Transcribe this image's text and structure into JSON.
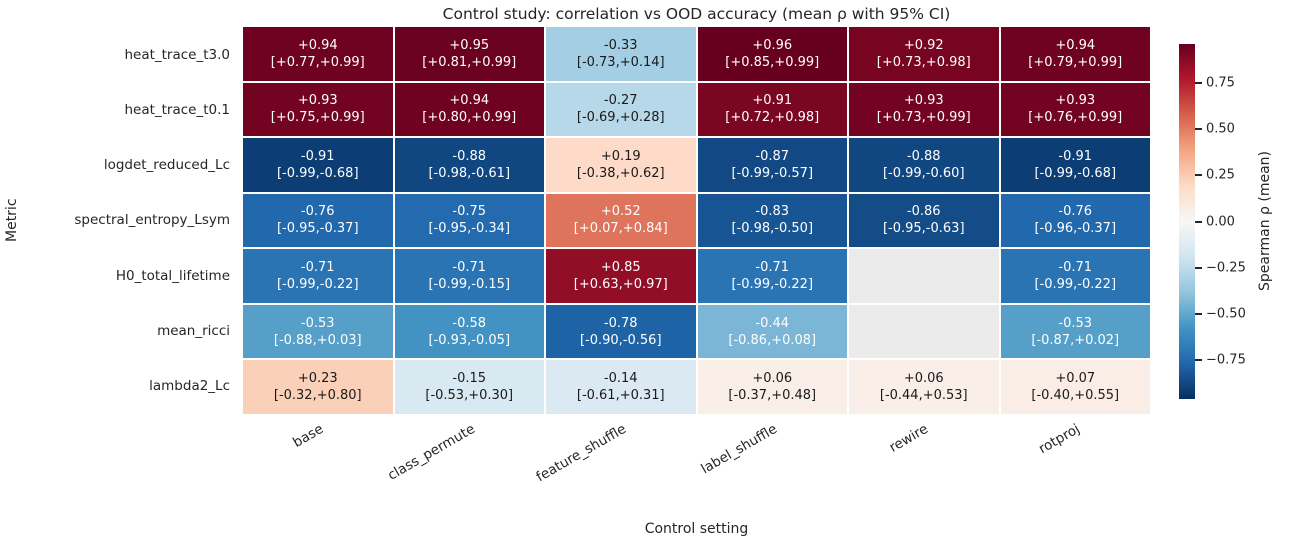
{
  "chart_data": {
    "type": "heatmap",
    "title": "Control study: correlation vs OOD accuracy (mean ρ with 95% CI)",
    "xlabel": "Control setting",
    "ylabel": "Metric",
    "colorbar_label": "Spearman ρ (mean)",
    "colormap": "RdBu_r",
    "vmin": -0.96,
    "vmax": 0.96,
    "missing_color": "#ebebeb",
    "columns": [
      "base",
      "class_permute",
      "feature_shuffle",
      "label_shuffle",
      "rewire",
      "rotproj"
    ],
    "rows": [
      "heat_trace_t3.0",
      "heat_trace_t0.1",
      "logdet_reduced_Lc",
      "spectral_entropy_Lsym",
      "H0_total_lifetime",
      "mean_ricci",
      "lambda2_Lc"
    ],
    "cells": [
      [
        {
          "mean": "+0.94",
          "ci": "[+0.77,+0.99]",
          "value": 0.94
        },
        {
          "mean": "+0.95",
          "ci": "[+0.81,+0.99]",
          "value": 0.95
        },
        {
          "mean": "-0.33",
          "ci": "[-0.73,+0.14]",
          "value": -0.33
        },
        {
          "mean": "+0.96",
          "ci": "[+0.85,+0.99]",
          "value": 0.96
        },
        {
          "mean": "+0.92",
          "ci": "[+0.73,+0.98]",
          "value": 0.92
        },
        {
          "mean": "+0.94",
          "ci": "[+0.79,+0.99]",
          "value": 0.94
        }
      ],
      [
        {
          "mean": "+0.93",
          "ci": "[+0.75,+0.99]",
          "value": 0.93
        },
        {
          "mean": "+0.94",
          "ci": "[+0.80,+0.99]",
          "value": 0.94
        },
        {
          "mean": "-0.27",
          "ci": "[-0.69,+0.28]",
          "value": -0.27
        },
        {
          "mean": "+0.91",
          "ci": "[+0.72,+0.98]",
          "value": 0.91
        },
        {
          "mean": "+0.93",
          "ci": "[+0.73,+0.99]",
          "value": 0.93
        },
        {
          "mean": "+0.93",
          "ci": "[+0.76,+0.99]",
          "value": 0.93
        }
      ],
      [
        {
          "mean": "-0.91",
          "ci": "[-0.99,-0.68]",
          "value": -0.91
        },
        {
          "mean": "-0.88",
          "ci": "[-0.98,-0.61]",
          "value": -0.88
        },
        {
          "mean": "+0.19",
          "ci": "[-0.38,+0.62]",
          "value": 0.19
        },
        {
          "mean": "-0.87",
          "ci": "[-0.99,-0.57]",
          "value": -0.87
        },
        {
          "mean": "-0.88",
          "ci": "[-0.99,-0.60]",
          "value": -0.88
        },
        {
          "mean": "-0.91",
          "ci": "[-0.99,-0.68]",
          "value": -0.91
        }
      ],
      [
        {
          "mean": "-0.76",
          "ci": "[-0.95,-0.37]",
          "value": -0.76
        },
        {
          "mean": "-0.75",
          "ci": "[-0.95,-0.34]",
          "value": -0.75
        },
        {
          "mean": "+0.52",
          "ci": "[+0.07,+0.84]",
          "value": 0.52
        },
        {
          "mean": "-0.83",
          "ci": "[-0.98,-0.50]",
          "value": -0.83
        },
        {
          "mean": "-0.86",
          "ci": "[-0.95,-0.63]",
          "value": -0.86
        },
        {
          "mean": "-0.76",
          "ci": "[-0.96,-0.37]",
          "value": -0.76
        }
      ],
      [
        {
          "mean": "-0.71",
          "ci": "[-0.99,-0.22]",
          "value": -0.71
        },
        {
          "mean": "-0.71",
          "ci": "[-0.99,-0.15]",
          "value": -0.71
        },
        {
          "mean": "+0.85",
          "ci": "[+0.63,+0.97]",
          "value": 0.85
        },
        {
          "mean": "-0.71",
          "ci": "[-0.99,-0.22]",
          "value": -0.71
        },
        null,
        {
          "mean": "-0.71",
          "ci": "[-0.99,-0.22]",
          "value": -0.71
        }
      ],
      [
        {
          "mean": "-0.53",
          "ci": "[-0.88,+0.03]",
          "value": -0.53
        },
        {
          "mean": "-0.58",
          "ci": "[-0.93,-0.05]",
          "value": -0.58
        },
        {
          "mean": "-0.78",
          "ci": "[-0.90,-0.56]",
          "value": -0.78
        },
        {
          "mean": "-0.44",
          "ci": "[-0.86,+0.08]",
          "value": -0.44
        },
        null,
        {
          "mean": "-0.53",
          "ci": "[-0.87,+0.02]",
          "value": -0.53
        }
      ],
      [
        {
          "mean": "+0.23",
          "ci": "[-0.32,+0.80]",
          "value": 0.23
        },
        {
          "mean": "-0.15",
          "ci": "[-0.53,+0.30]",
          "value": -0.15
        },
        {
          "mean": "-0.14",
          "ci": "[-0.61,+0.31]",
          "value": -0.14
        },
        {
          "mean": "+0.06",
          "ci": "[-0.37,+0.48]",
          "value": 0.06
        },
        {
          "mean": "+0.06",
          "ci": "[-0.44,+0.53]",
          "value": 0.06
        },
        {
          "mean": "+0.07",
          "ci": "[-0.40,+0.55]",
          "value": 0.07
        }
      ]
    ],
    "colorbar_ticks": [
      {
        "label": "0.75",
        "value": 0.75
      },
      {
        "label": "0.50",
        "value": 0.5
      },
      {
        "label": "0.25",
        "value": 0.25
      },
      {
        "label": "0.00",
        "value": 0.0
      },
      {
        "label": "−0.25",
        "value": -0.25
      },
      {
        "label": "−0.50",
        "value": -0.5
      },
      {
        "label": "−0.75",
        "value": -0.75
      }
    ]
  }
}
